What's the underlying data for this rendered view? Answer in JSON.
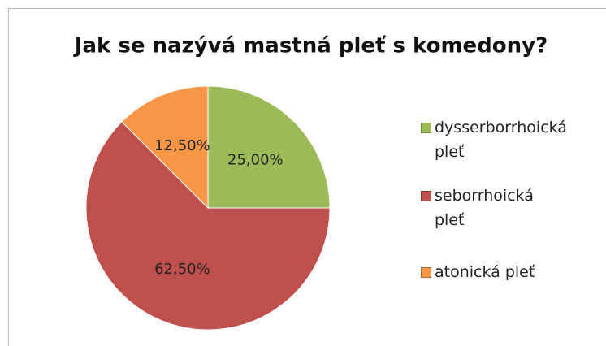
{
  "chart_data": {
    "type": "pie",
    "title": "Jak se nazývá mastná pleť s komedony?",
    "categories": [
      "dysserborrhoická pleť",
      "seborrhoická pleť",
      "atonická pleť"
    ],
    "values": [
      25,
      62.5,
      12.5
    ],
    "value_labels": [
      "25,00%",
      "62,50%",
      "12,50%"
    ],
    "colors": [
      "#9bbb59",
      "#c0504d",
      "#f79646"
    ],
    "legend": "right"
  }
}
